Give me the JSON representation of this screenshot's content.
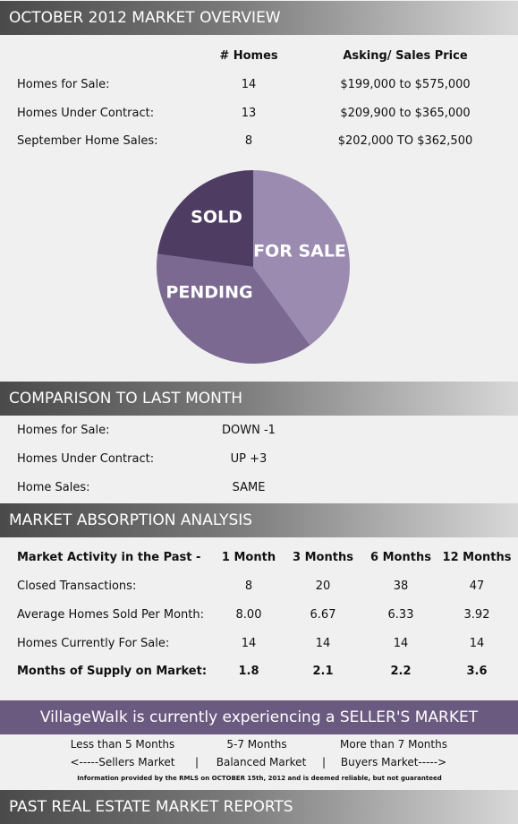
{
  "overview": {
    "title": "OCTOBER 2012 MARKET OVERVIEW",
    "headers": [
      "# Homes",
      "Asking/ Sales Price"
    ],
    "rows": [
      [
        "Homes for Sale:",
        14,
        "$199,000 to $575,000"
      ],
      [
        "Homes Under Contract:",
        13,
        "$209,900 to $365,000"
      ],
      [
        "September Home Sales:",
        8,
        "$202,000 TO $362,500"
      ]
    ]
  },
  "pie": {
    "labels": [
      "FOR SALE",
      "PENDING",
      "SOLD"
    ],
    "colors": [
      "#9b8bb0",
      "#7b6992",
      "#4e3c63"
    ]
  },
  "comparison": {
    "title": "COMPARISON TO LAST MONTH",
    "rows": [
      [
        "Homes for Sale:",
        "DOWN -1"
      ],
      [
        "Homes Under Contract:",
        "UP +3"
      ],
      [
        "Home Sales:",
        "SAME"
      ]
    ]
  },
  "absorption": {
    "title": "MARKET ABSORPTION ANALYSIS",
    "headers": [
      "Market Activity in the Past -",
      "1 Month",
      "3 Months",
      "6 Months",
      "12 Months"
    ],
    "rows": [
      [
        "Closed Transactions:",
        8,
        20,
        38,
        47
      ],
      [
        "Average Homes Sold Per Month:",
        "8.00",
        "6.67",
        "6.33",
        "3.92"
      ],
      [
        "Homes Currently For Sale:",
        14,
        14,
        14,
        14
      ],
      [
        "Months of Supply on Market:",
        1.8,
        2.1,
        2.2,
        3.6
      ]
    ]
  },
  "banner": "VillageWalk is currently experiencing a SELLER'S MARKET",
  "legend": {
    "ranges": [
      "Less than 5 Months",
      "5-7 Months",
      "More than 7 Months"
    ],
    "markets": [
      "<-----Sellers Market",
      "Balanced Market",
      "Buyers Market----->"
    ],
    "separator": "|"
  },
  "footnote": "Information provided by the RMLS on OCTOBER 15th, 2012 and is deemed reliable, but not guaranteed",
  "footer_title": "PAST REAL ESTATE MARKET REPORTS"
}
